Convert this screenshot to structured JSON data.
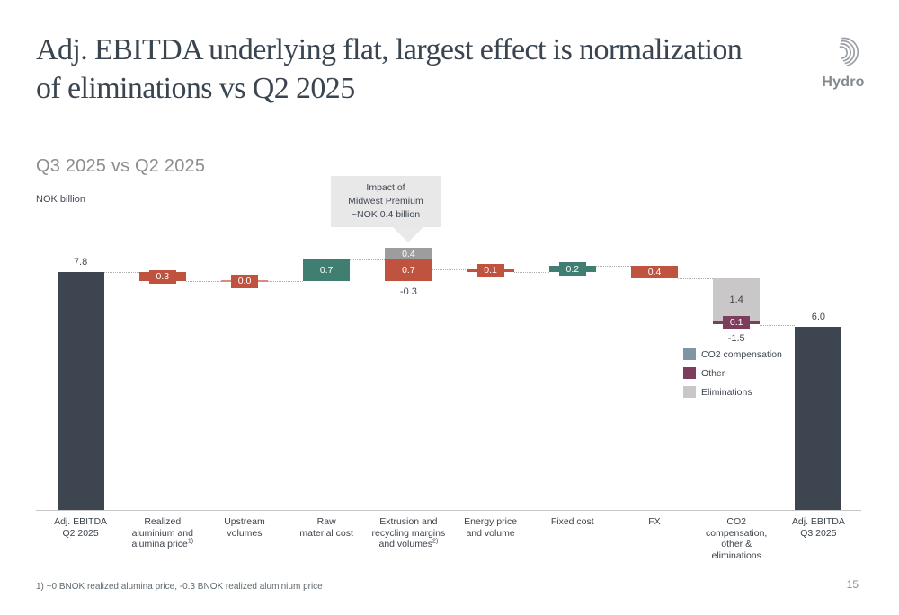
{
  "slide": {
    "title_line1": "Adj. EBITDA underlying flat, largest effect is normalization",
    "title_line2": "of eliminations vs Q2 2025",
    "subtitle": "Q3 2025 vs Q2 2025",
    "unit_label": "NOK billion",
    "footnote": "1) ~0 BNOK realized alumina price, -0.3 BNOK realized aluminium price",
    "page_number": "15",
    "logo_text": "Hydro"
  },
  "annotation": {
    "text": "Impact of\nMidwest Premium\n~NOK 0.4 billion"
  },
  "legend": [
    {
      "label": "CO2 compensation",
      "color": "#7e96a3"
    },
    {
      "label": "Other",
      "color": "#7d3e5d"
    },
    {
      "label": "Eliminations",
      "color": "#c9c7c7"
    }
  ],
  "colors": {
    "total_bar": "#3d4650",
    "negative": "#c05340",
    "positive": "#3f7e71",
    "midwest_premium": "#9d9d9d",
    "eliminations": "#c9c7c7",
    "other": "#7d3e5d",
    "co2_compensation": "#7e96a3"
  },
  "chart_data": {
    "type": "waterfall",
    "title": "Q3 2025 vs Q2 2025",
    "ylabel": "NOK billion",
    "ylim": [
      0,
      8.77
    ],
    "start_value": 7.8,
    "end_value": 6.0,
    "deltas": [
      -0.3,
      0.0,
      0.7,
      -0.3,
      -0.1,
      0.2,
      -0.4,
      -1.5
    ],
    "columns": [
      {
        "name": "adj-ebitda-q2-2025",
        "value": 7.8,
        "top_label": "7.8",
        "label_lines": [
          "Adj. EBITDA",
          "Q2 2025"
        ],
        "items": [
          {
            "type": "bar",
            "color": "dark",
            "top": 7.8,
            "bottom": 0
          }
        ]
      },
      {
        "name": "realized-aluminium-and-alumina-price",
        "value": -0.3,
        "label_lines": [
          "Realized",
          "aluminium and",
          {
            "text": "alumina price",
            "sup": "1)"
          }
        ],
        "items": [
          {
            "type": "thinbar",
            "color": "red",
            "top": 7.8,
            "bottom": 7.5
          },
          {
            "type": "chip",
            "color": "red",
            "center": 7.65,
            "text": "0.3"
          }
        ]
      },
      {
        "name": "upstream-volumes",
        "value": 0.0,
        "label_lines": [
          "Upstream",
          "volumes"
        ],
        "items": [
          {
            "type": "thinbar",
            "color": "salmon",
            "top": 7.53,
            "bottom": 7.47
          },
          {
            "type": "chip",
            "color": "red",
            "center": 7.5,
            "text": "0.0"
          }
        ]
      },
      {
        "name": "raw-material-cost",
        "value": 0.7,
        "label_lines": [
          "Raw",
          "material cost"
        ],
        "items": [
          {
            "type": "bar",
            "color": "teal",
            "top": 8.2,
            "bottom": 7.5,
            "text": "0.7"
          }
        ]
      },
      {
        "name": "extrusion-and-recycling-margins-and-volumes",
        "value": -0.3,
        "label_lines": [
          "Extrusion and",
          "recycling margins",
          {
            "text": "and volumes",
            "sup": "2)"
          }
        ],
        "items": [
          {
            "type": "bar",
            "color": "midgray",
            "top": 8.6,
            "bottom": 8.2,
            "text": "0.4"
          },
          {
            "type": "bar",
            "color": "red",
            "top": 8.2,
            "bottom": 7.5,
            "text": "0.7"
          }
        ],
        "below_label": {
          "text": "-0.3",
          "level": 7.42
        }
      },
      {
        "name": "energy-price-and-volume",
        "value": -0.1,
        "label_lines": [
          "Energy price",
          "and volume"
        ],
        "items": [
          {
            "type": "thinbar",
            "color": "red",
            "top": 7.9,
            "bottom": 7.8
          },
          {
            "type": "chip",
            "color": "red",
            "center": 7.85,
            "text": "0.1"
          }
        ]
      },
      {
        "name": "fixed-cost",
        "value": 0.2,
        "label_lines": [
          "Fixed cost"
        ],
        "items": [
          {
            "type": "thinbar",
            "color": "teal",
            "top": 8.0,
            "bottom": 7.8
          },
          {
            "type": "chip",
            "color": "teal",
            "center": 7.9,
            "text": "0.2"
          }
        ]
      },
      {
        "name": "fx",
        "value": -0.4,
        "label_lines": [
          "FX"
        ],
        "items": [
          {
            "type": "bar",
            "color": "red",
            "top": 8.0,
            "bottom": 7.6,
            "text": "0.4"
          }
        ]
      },
      {
        "name": "co2-compensation-other-and-eliminations",
        "value": -1.5,
        "label_lines": [
          "CO2",
          "compensation,",
          "other &",
          "eliminations"
        ],
        "items": [
          {
            "type": "bar",
            "color": "lightgray",
            "top": 7.6,
            "bottom": 6.2,
            "text": "1.4",
            "text_color": "dark"
          },
          {
            "type": "thinbar",
            "color": "purple",
            "top": 6.2,
            "bottom": 6.1
          },
          {
            "type": "chip",
            "color": "purple",
            "center": 6.15,
            "text": "0.1"
          }
        ],
        "below_label": {
          "text": "-1.5",
          "level": 5.88
        }
      },
      {
        "name": "adj-ebitda-q3-2025",
        "value": 6.0,
        "top_label": "6.0",
        "label_lines": [
          "Adj. EBITDA",
          "Q3 2025"
        ],
        "items": [
          {
            "type": "bar",
            "color": "dark",
            "top": 6.0,
            "bottom": 0
          }
        ]
      }
    ],
    "connectors": [
      {
        "from": 0,
        "to": 1,
        "level": 7.8
      },
      {
        "from": 1,
        "to": 2,
        "level": 7.5
      },
      {
        "from": 2,
        "to": 3,
        "level": 7.5
      },
      {
        "from": 3,
        "to": 4,
        "level": 8.2
      },
      {
        "from": 4,
        "to": 5,
        "level": 7.9
      },
      {
        "from": 5,
        "to": 6,
        "level": 7.8
      },
      {
        "from": 6,
        "to": 7,
        "level": 8.0
      },
      {
        "from": 7,
        "to": 8,
        "level": 7.6
      },
      {
        "from": 8,
        "to": 9,
        "level": 6.05
      }
    ]
  }
}
